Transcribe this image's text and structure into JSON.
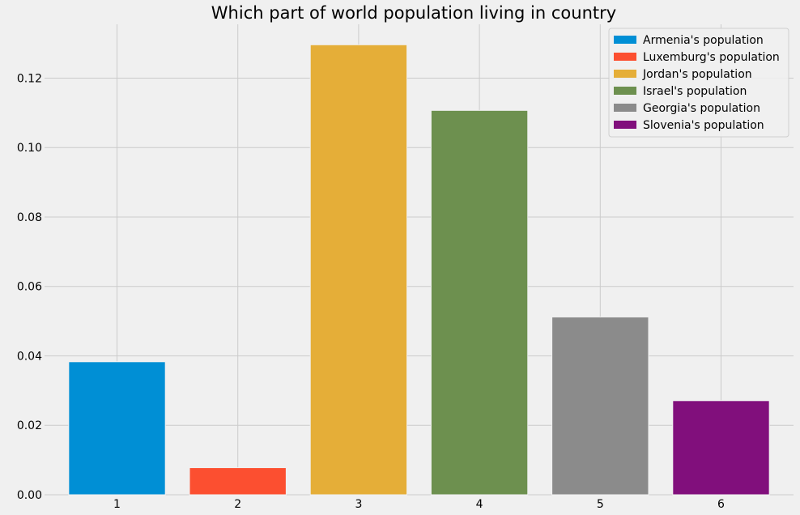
{
  "chart_data": {
    "type": "bar",
    "title": "Which part of world population living in country",
    "xlabel": "",
    "ylabel": "",
    "categories": [
      "1",
      "2",
      "3",
      "4",
      "5",
      "6"
    ],
    "values": [
      0.0383,
      0.0078,
      0.1296,
      0.1107,
      0.0512,
      0.0271
    ],
    "colors": [
      "#008fd5",
      "#fc4f30",
      "#e5ae38",
      "#6d904f",
      "#8b8b8b",
      "#810f7c"
    ],
    "series_names": [
      "Armenia's population",
      "Luxemburg's population",
      "Jordan's population",
      "Israel's population",
      "Georgia's population",
      "Slovenia's population"
    ],
    "ylim": [
      0,
      0.1355
    ],
    "xlim": [
      0.4,
      6.6
    ],
    "yticks": [
      0.0,
      0.02,
      0.04,
      0.06,
      0.08,
      0.1,
      0.12
    ],
    "ytick_labels": [
      "0.00",
      "0.02",
      "0.04",
      "0.06",
      "0.08",
      "0.10",
      "0.12"
    ],
    "grid": true,
    "legend_position": "top-right"
  }
}
